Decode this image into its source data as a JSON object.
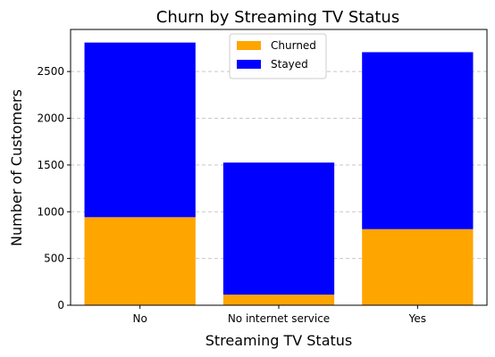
{
  "chart_data": {
    "type": "bar",
    "stacked": true,
    "title": "Churn by Streaming TV Status",
    "xlabel": "Streaming TV Status",
    "ylabel": "Number of Customers",
    "categories": [
      "No",
      "No internet service",
      "Yes"
    ],
    "series": [
      {
        "name": "Churned",
        "values": [
          942,
          113,
          814
        ],
        "color": "#ffa500"
      },
      {
        "name": "Stayed",
        "values": [
          1868,
          1413,
          1893
        ],
        "color": "#0000ff"
      }
    ],
    "ylim": [
      0,
      2950
    ],
    "yticks": [
      0,
      500,
      1000,
      1500,
      2000,
      2500
    ],
    "grid": "y",
    "legend": "top-center"
  }
}
